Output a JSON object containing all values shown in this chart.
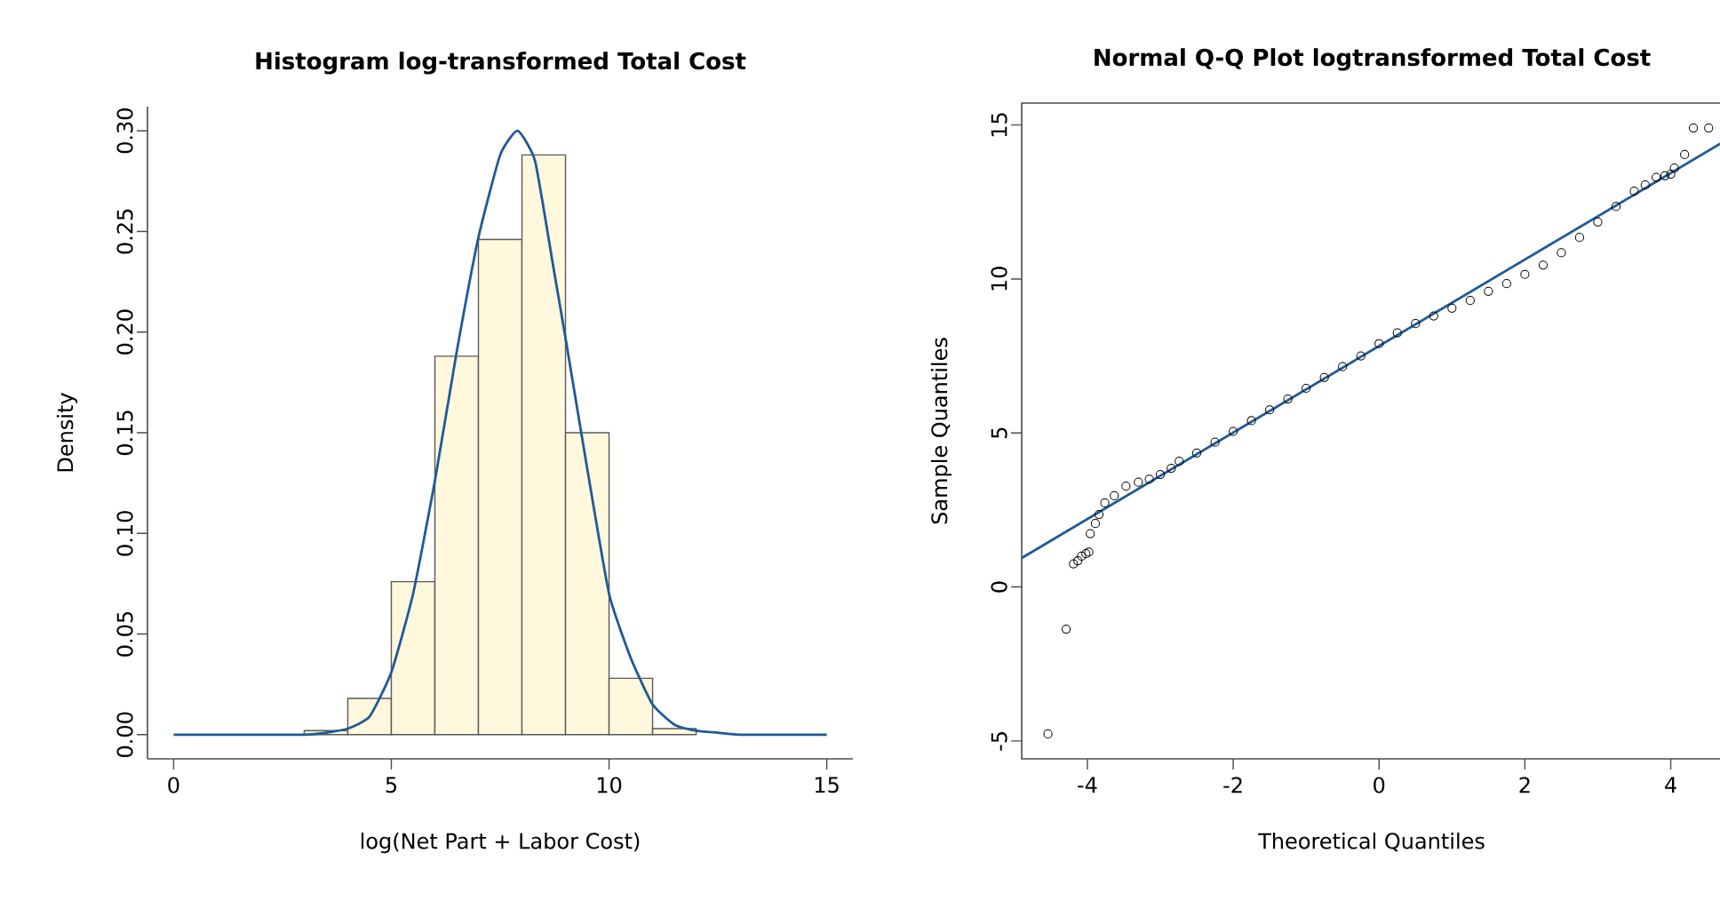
{
  "chart_data": [
    {
      "type": "histogram",
      "title": "Histogram log-transformed Total Cost",
      "xlabel": "log(Net Part + Labor Cost)",
      "ylabel": "Density",
      "bins": [
        3,
        4,
        5,
        6,
        7,
        8,
        9,
        10,
        11,
        12
      ],
      "values": [
        0.002,
        0.018,
        0.076,
        0.188,
        0.246,
        0.288,
        0.15,
        0.028,
        0.003
      ],
      "color": "#fff8dc",
      "series": [
        {
          "type": "line",
          "color": "#1f5a96",
          "x": [
            0,
            1,
            2,
            3,
            3.5,
            4,
            4.5,
            5,
            5.5,
            6,
            6.5,
            7,
            7.5,
            7.9,
            8.3,
            8.7,
            9,
            9.5,
            10,
            10.5,
            11,
            11.5,
            12,
            12.5,
            13,
            14,
            15
          ],
          "values": [
            0,
            0,
            0,
            0,
            0.001,
            0.003,
            0.009,
            0.031,
            0.07,
            0.126,
            0.19,
            0.247,
            0.288,
            0.3,
            0.285,
            0.235,
            0.197,
            0.132,
            0.07,
            0.038,
            0.015,
            0.005,
            0.002,
            0.001,
            0,
            0,
            0
          ]
        }
      ],
      "xlim": [
        -0.6,
        15.6
      ],
      "xticks": [
        0,
        5,
        10,
        15
      ],
      "ylim": [
        -0.012,
        0.312
      ],
      "yticks": [
        {
          "value": 0,
          "label": "0.00"
        },
        {
          "value": 0.05,
          "label": "0.05"
        },
        {
          "value": 0.1,
          "label": "0.10"
        },
        {
          "value": 0.15,
          "label": "0.15"
        },
        {
          "value": 0.2,
          "label": "0.20"
        },
        {
          "value": 0.25,
          "label": "0.25"
        },
        {
          "value": 0.3,
          "label": "0.30"
        }
      ]
    },
    {
      "type": "scatter",
      "title": "Normal Q-Q Plot logtransformed Total Cost",
      "xlabel": "Theoretical Quantiles",
      "ylabel": "Sample Quantiles",
      "series": [
        {
          "type": "scatter",
          "marker": "circle",
          "color": "#000000",
          "x": [
            -4.54,
            -4.29,
            -4.19,
            -4.13,
            -4.08,
            -4.02,
            -3.98,
            -3.96,
            -3.89,
            -3.84,
            -3.76,
            -3.63,
            -3.47,
            -3.3,
            -3.15,
            -3.0,
            -2.85,
            -2.74,
            -2.5,
            -2.25,
            -2.0,
            -1.75,
            -1.5,
            -1.25,
            -1.0,
            -0.75,
            -0.5,
            -0.25,
            0.0,
            0.25,
            0.5,
            0.75,
            1.0,
            1.25,
            1.5,
            1.75,
            2.0,
            2.25,
            2.5,
            2.75,
            3.0,
            3.25,
            3.5,
            3.65,
            3.8,
            3.92,
            4.0,
            4.05,
            4.19,
            4.31,
            4.52
          ],
          "values": [
            -4.77,
            -1.37,
            0.75,
            0.85,
            1.0,
            1.08,
            1.13,
            1.73,
            2.06,
            2.35,
            2.73,
            2.96,
            3.27,
            3.4,
            3.5,
            3.65,
            3.85,
            4.08,
            4.35,
            4.7,
            5.05,
            5.4,
            5.75,
            6.1,
            6.45,
            6.8,
            7.15,
            7.5,
            7.9,
            8.25,
            8.55,
            8.8,
            9.05,
            9.3,
            9.6,
            9.85,
            10.15,
            10.45,
            10.85,
            11.35,
            11.85,
            12.35,
            12.85,
            13.05,
            13.3,
            13.35,
            13.4,
            13.6,
            14.04,
            14.9,
            14.9
          ]
        },
        {
          "type": "line",
          "marker": "none",
          "color": "#1f5a96",
          "x": [
            -4.9,
            4.7
          ],
          "values": [
            0.94,
            14.42
          ]
        }
      ],
      "xlim": [
        -4.9,
        4.7
      ],
      "xticks": [
        -4,
        -2,
        0,
        2,
        4
      ],
      "ylim": [
        -5.58,
        15.71
      ],
      "yticks": [
        -5,
        0,
        5,
        10,
        15
      ]
    }
  ]
}
